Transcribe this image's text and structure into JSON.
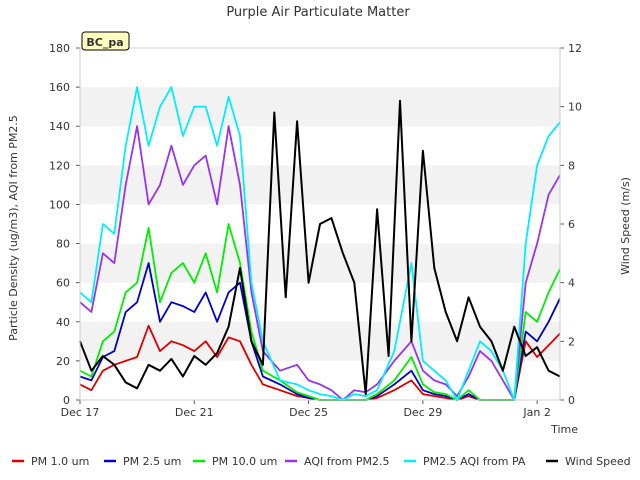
{
  "chart_data": {
    "type": "line",
    "title": "Purple Air Particulate Matter",
    "xlabel": "Time",
    "ylabel": "Particle Density (ug/m3), AQI from PM2.5",
    "y2label": "Wind Speed (m/s)",
    "site_label": "BC_pa",
    "x_ticks": [
      "Dec 17",
      "Dec 21",
      "Dec 25",
      "Dec 29",
      "Jan 2"
    ],
    "xlim": [
      0,
      16.8
    ],
    "ylim": [
      0,
      180
    ],
    "y_ticks": [
      0,
      20,
      40,
      60,
      80,
      100,
      120,
      140,
      160,
      180
    ],
    "y2lim": [
      0,
      12
    ],
    "y2_ticks": [
      0,
      2,
      4,
      6,
      8,
      10,
      12
    ],
    "grid": "horizontal bands",
    "legend_position": "bottom",
    "series": [
      {
        "name": "PM 1.0 um",
        "color": "#dd0000",
        "axis": "left",
        "x": [
          0.0,
          0.4,
          0.8,
          1.2,
          1.6,
          2.0,
          2.4,
          2.8,
          3.2,
          3.6,
          4.0,
          4.4,
          4.8,
          5.2,
          5.6,
          6.0,
          6.4,
          7.0,
          7.6,
          8.0,
          8.4,
          8.8,
          9.2,
          9.6,
          10.0,
          10.4,
          11.0,
          11.6,
          12.0,
          12.4,
          12.8,
          13.2,
          13.6,
          14.0,
          14.4,
          14.8,
          15.2,
          15.6,
          16.0,
          16.4,
          16.8
        ],
        "y": [
          8,
          5,
          15,
          18,
          20,
          22,
          38,
          25,
          30,
          28,
          25,
          30,
          22,
          32,
          30,
          18,
          8,
          5,
          2,
          1,
          0,
          0,
          0,
          0,
          0,
          1,
          5,
          10,
          3,
          2,
          1,
          0,
          2,
          0,
          0,
          0,
          0,
          30,
          22,
          28,
          34
        ]
      },
      {
        "name": "PM 2.5 um",
        "color": "#0000cc",
        "axis": "left",
        "x": [
          0.0,
          0.4,
          0.8,
          1.2,
          1.6,
          2.0,
          2.4,
          2.8,
          3.2,
          3.6,
          4.0,
          4.4,
          4.8,
          5.2,
          5.6,
          6.0,
          6.4,
          7.0,
          7.6,
          8.0,
          8.4,
          8.8,
          9.2,
          9.6,
          10.0,
          10.4,
          11.0,
          11.6,
          12.0,
          12.4,
          12.8,
          13.2,
          13.6,
          14.0,
          14.4,
          14.8,
          15.2,
          15.6,
          16.0,
          16.4,
          16.8
        ],
        "y": [
          12,
          10,
          22,
          25,
          45,
          50,
          70,
          40,
          50,
          48,
          45,
          55,
          40,
          55,
          60,
          30,
          12,
          8,
          3,
          1,
          0,
          0,
          0,
          0,
          0,
          2,
          8,
          15,
          5,
          3,
          2,
          0,
          3,
          0,
          0,
          0,
          0,
          35,
          30,
          40,
          52
        ]
      },
      {
        "name": "PM 10.0 um",
        "color": "#00ee00",
        "axis": "left",
        "x": [
          0.0,
          0.4,
          0.8,
          1.2,
          1.6,
          2.0,
          2.4,
          2.8,
          3.2,
          3.6,
          4.0,
          4.4,
          4.8,
          5.2,
          5.6,
          6.0,
          6.4,
          7.0,
          7.6,
          8.0,
          8.4,
          8.8,
          9.2,
          9.6,
          10.0,
          10.4,
          11.0,
          11.6,
          12.0,
          12.4,
          12.8,
          13.2,
          13.6,
          14.0,
          14.4,
          14.8,
          15.2,
          15.6,
          16.0,
          16.4,
          16.8
        ],
        "y": [
          15,
          12,
          30,
          35,
          55,
          60,
          88,
          50,
          65,
          70,
          60,
          75,
          55,
          90,
          70,
          35,
          15,
          10,
          4,
          2,
          0,
          0,
          0,
          0,
          0,
          3,
          10,
          22,
          8,
          4,
          3,
          0,
          5,
          0,
          0,
          0,
          0,
          45,
          40,
          55,
          67
        ]
      },
      {
        "name": "AQI from PM2.5",
        "color": "#9933ee",
        "axis": "left",
        "x": [
          0.0,
          0.4,
          0.8,
          1.2,
          1.6,
          2.0,
          2.4,
          2.8,
          3.2,
          3.6,
          4.0,
          4.4,
          4.8,
          5.2,
          5.6,
          6.0,
          6.4,
          7.0,
          7.6,
          8.0,
          8.4,
          8.8,
          9.2,
          9.6,
          10.0,
          10.4,
          11.0,
          11.6,
          12.0,
          12.4,
          12.8,
          13.2,
          13.6,
          14.0,
          14.4,
          14.8,
          15.2,
          15.6,
          16.0,
          16.4,
          16.8
        ],
        "y": [
          50,
          45,
          75,
          70,
          110,
          140,
          100,
          110,
          130,
          110,
          120,
          125,
          100,
          140,
          110,
          55,
          25,
          15,
          18,
          10,
          8,
          5,
          0,
          5,
          4,
          8,
          20,
          30,
          15,
          10,
          8,
          2,
          12,
          25,
          20,
          10,
          0,
          60,
          80,
          105,
          115
        ]
      },
      {
        "name": "PM2.5 AQI from PA",
        "color": "#00eeff",
        "axis": "left",
        "x": [
          0.0,
          0.4,
          0.8,
          1.2,
          1.6,
          2.0,
          2.4,
          2.8,
          3.2,
          3.6,
          4.0,
          4.4,
          4.8,
          5.2,
          5.6,
          6.0,
          6.4,
          7.0,
          7.6,
          8.0,
          8.4,
          8.8,
          9.2,
          9.6,
          10.0,
          10.4,
          11.0,
          11.6,
          12.0,
          12.4,
          12.8,
          13.2,
          13.6,
          14.0,
          14.4,
          14.8,
          15.2,
          15.6,
          16.0,
          16.4,
          16.8
        ],
        "y": [
          55,
          50,
          90,
          85,
          130,
          160,
          130,
          150,
          160,
          135,
          150,
          150,
          130,
          155,
          135,
          60,
          30,
          10,
          8,
          5,
          3,
          2,
          0,
          3,
          2,
          5,
          25,
          70,
          20,
          15,
          10,
          0,
          15,
          30,
          25,
          15,
          0,
          80,
          120,
          135,
          142
        ]
      },
      {
        "name": "Wind Speed",
        "color": "#000000",
        "axis": "right",
        "x": [
          0.0,
          0.4,
          0.8,
          1.2,
          1.6,
          2.0,
          2.4,
          2.8,
          3.2,
          3.6,
          4.0,
          4.4,
          4.8,
          5.2,
          5.6,
          6.0,
          6.4,
          6.8,
          7.2,
          7.6,
          8.0,
          8.4,
          8.8,
          9.2,
          9.6,
          10.0,
          10.4,
          10.8,
          11.2,
          11.6,
          12.0,
          12.4,
          12.8,
          13.2,
          13.6,
          14.0,
          14.4,
          14.8,
          15.2,
          15.6,
          16.0,
          16.4,
          16.8
        ],
        "y": [
          2.0,
          1.0,
          1.5,
          1.2,
          0.6,
          0.4,
          1.2,
          1.0,
          1.4,
          0.8,
          1.5,
          1.2,
          1.6,
          2.5,
          4.5,
          2.0,
          1.2,
          9.8,
          3.5,
          9.5,
          4.0,
          6.0,
          6.2,
          5.0,
          4.0,
          0.2,
          6.5,
          1.5,
          10.2,
          2.0,
          8.5,
          4.5,
          3.0,
          2.0,
          3.5,
          2.5,
          2.0,
          1.0,
          2.5,
          1.5,
          1.8,
          1.0,
          0.8
        ]
      }
    ]
  }
}
